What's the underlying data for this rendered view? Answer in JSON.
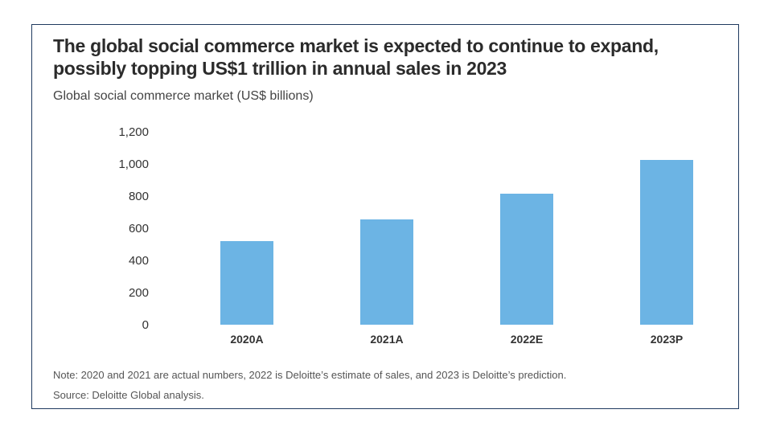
{
  "chart_data": {
    "type": "bar",
    "title": "The global social commerce market is expected to continue to expand, possibly topping US$1 trillion in annual sales in 2023",
    "subtitle": "Global social commerce market (US$ billions)",
    "categories": [
      "2020A",
      "2021A",
      "2022E",
      "2023P"
    ],
    "values": [
      520,
      655,
      815,
      1025
    ],
    "ylim": [
      0,
      1200
    ],
    "yticks": [
      0,
      200,
      400,
      600,
      800,
      1000,
      1200
    ],
    "ytick_labels": [
      "0",
      "200",
      "400",
      "600",
      "800",
      "1,000",
      "1,200"
    ],
    "xlabel": "",
    "ylabel": "",
    "bar_color": "#6cb4e4",
    "grid": false
  },
  "footer": {
    "note": "Note: 2020 and 2021 are actual numbers, 2022 is Deloitte’s estimate of sales, and 2023 is Deloitte’s prediction.",
    "source": "Source: Deloitte Global analysis."
  }
}
